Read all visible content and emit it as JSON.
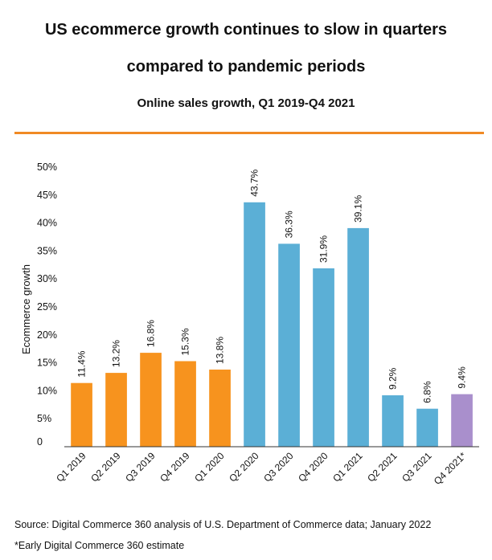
{
  "title": "US ecommerce growth continues to slow in quarters compared to pandemic periods",
  "subtitle": "Online sales growth, Q1 2019-Q4 2021",
  "source": "Source: Digital Commerce 360 analysis of U.S. Department of Commerce data; January 2022",
  "footnote": "*Early Digital Commerce 360 estimate",
  "colors": {
    "rule": "#f08a24",
    "text": "#111111",
    "axis": "#333333"
  },
  "chart_data": {
    "type": "bar",
    "categories": [
      "Q1 2019",
      "Q2 2019",
      "Q3 2019",
      "Q4 2019",
      "Q1 2020",
      "Q2 2020",
      "Q3 2020",
      "Q4 2020",
      "Q1 2021",
      "Q2 2021",
      "Q3 2021",
      "Q4 2021*"
    ],
    "values": [
      11.4,
      13.2,
      16.8,
      15.3,
      13.8,
      43.7,
      36.3,
      31.9,
      39.1,
      9.2,
      6.8,
      9.4
    ],
    "data_labels": [
      "11.4%",
      "13.2%",
      "16.8%",
      "15.3%",
      "13.8%",
      "43.7%",
      "36.3%",
      "31.9%",
      "39.1%",
      "9.2%",
      "6.8%",
      "9.4%"
    ],
    "bar_colors": [
      "#f7931e",
      "#f7931e",
      "#f7931e",
      "#f7931e",
      "#f7931e",
      "#5bafd6",
      "#5bafd6",
      "#5bafd6",
      "#5bafd6",
      "#5bafd6",
      "#5bafd6",
      "#a98fcc"
    ],
    "ylabel": "Ecommerce growth",
    "xlabel": "",
    "ylim": [
      0,
      50
    ],
    "yticks": [
      0,
      5,
      10,
      15,
      20,
      25,
      30,
      35,
      40,
      45,
      50
    ],
    "ytick_labels": [
      "0",
      "5%",
      "10%",
      "15%",
      "20%",
      "25%",
      "30%",
      "35%",
      "40%",
      "45%",
      "50%"
    ],
    "grid": false,
    "legend": "none"
  }
}
